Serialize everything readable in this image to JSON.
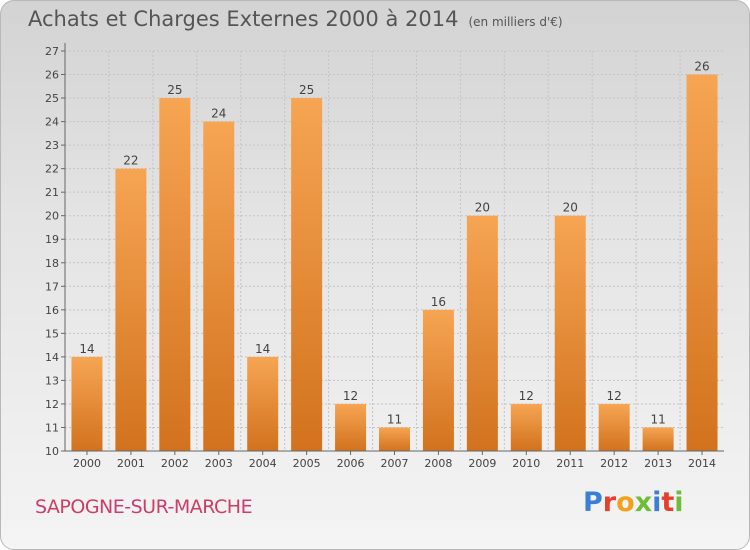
{
  "title": "Achats et Charges Externes 2000 à 2014",
  "unit": "(en milliers d'€)",
  "commune": "SAPOGNE-SUR-MARCHE",
  "logo": "Proxiti",
  "colors": {
    "bar_light": "#f6a553",
    "bar_dark": "#d2721e",
    "commune": "#cc3d6a",
    "grid": "#c4c4c4"
  },
  "chart_data": {
    "type": "bar",
    "title": "Achats et Charges Externes 2000 à 2014",
    "subtitle": "(en milliers d'€)",
    "categories": [
      "2000",
      "2001",
      "2002",
      "2003",
      "2004",
      "2005",
      "2006",
      "2007",
      "2008",
      "2009",
      "2010",
      "2011",
      "2012",
      "2013",
      "2014"
    ],
    "values": [
      14,
      22,
      25,
      24,
      14,
      25,
      12,
      11,
      16,
      20,
      12,
      20,
      12,
      11,
      26
    ],
    "ylim": [
      10,
      27
    ],
    "yticks": [
      10,
      11,
      12,
      13,
      14,
      15,
      16,
      17,
      18,
      19,
      20,
      21,
      22,
      23,
      24,
      25,
      26,
      27
    ],
    "grid": true,
    "data_labels": true
  }
}
